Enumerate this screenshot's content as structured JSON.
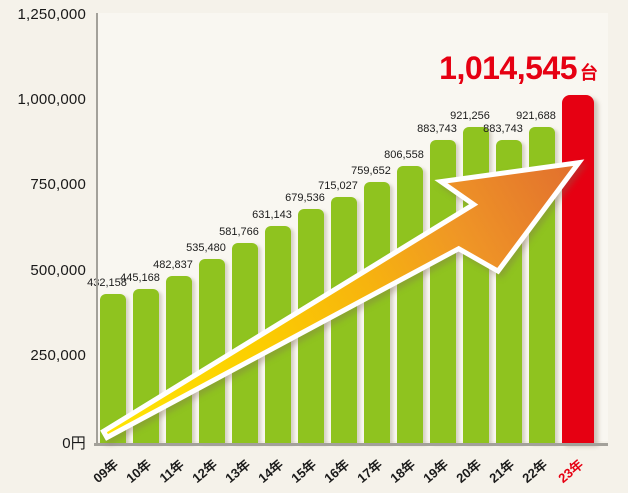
{
  "chart_data": {
    "type": "bar",
    "title": "",
    "xlabel": "",
    "ylabel": "",
    "ylim": [
      0,
      1250000
    ],
    "grid": false,
    "legend": false,
    "yticks": [
      {
        "value": 1250000,
        "label": "1,250,000"
      },
      {
        "value": 1000000,
        "label": "1,000,000"
      },
      {
        "value": 750000,
        "label": "750,000"
      },
      {
        "value": 500000,
        "label": "500,000"
      },
      {
        "value": 250000,
        "label": "250,000"
      },
      {
        "value": 0,
        "label": "0円"
      }
    ],
    "bars": [
      {
        "category": "09年",
        "value": 432158,
        "label": "432,158",
        "highlight": false
      },
      {
        "category": "10年",
        "value": 445168,
        "label": "445,168",
        "highlight": false
      },
      {
        "category": "11年",
        "value": 482837,
        "label": "482,837",
        "highlight": false
      },
      {
        "category": "12年",
        "value": 535480,
        "label": "535,480",
        "highlight": false
      },
      {
        "category": "13年",
        "value": 581766,
        "label": "581,766",
        "highlight": false
      },
      {
        "category": "14年",
        "value": 631143,
        "label": "631,143",
        "highlight": false
      },
      {
        "category": "15年",
        "value": 679536,
        "label": "679,536",
        "highlight": false
      },
      {
        "category": "16年",
        "value": 715027,
        "label": "715,027",
        "highlight": false
      },
      {
        "category": "17年",
        "value": 759652,
        "label": "759,652",
        "highlight": false
      },
      {
        "category": "18年",
        "value": 806558,
        "label": "806,558",
        "highlight": false
      },
      {
        "category": "19年",
        "value": 883743,
        "label": "883,743",
        "highlight": false
      },
      {
        "category": "20年",
        "value": 921256,
        "label": "921,256",
        "highlight": false
      },
      {
        "category": "21年",
        "value": 883743,
        "label": "883,743",
        "highlight": false
      },
      {
        "category": "22年",
        "value": 921688,
        "label": "921,688",
        "highlight": false
      },
      {
        "category": "23年",
        "value": 1014545,
        "highlight": true
      }
    ],
    "highlight_label": {
      "value": "1,014,545",
      "unit": "台"
    },
    "colors": {
      "bar": "#8fc31f",
      "highlight": "#e60012",
      "axis": "#a3a19a",
      "text": "#1b1b1b",
      "background": "#f5f2ea",
      "arrow_gradient": [
        "#ffe605",
        "#fcce00",
        "#f7b40e",
        "#ef9526",
        "#e16e2e"
      ],
      "arrow_outline": "#ffffff"
    },
    "annotations": {
      "trend_arrow": "upward diagonal arrow from first bar to highlighted bar"
    }
  }
}
